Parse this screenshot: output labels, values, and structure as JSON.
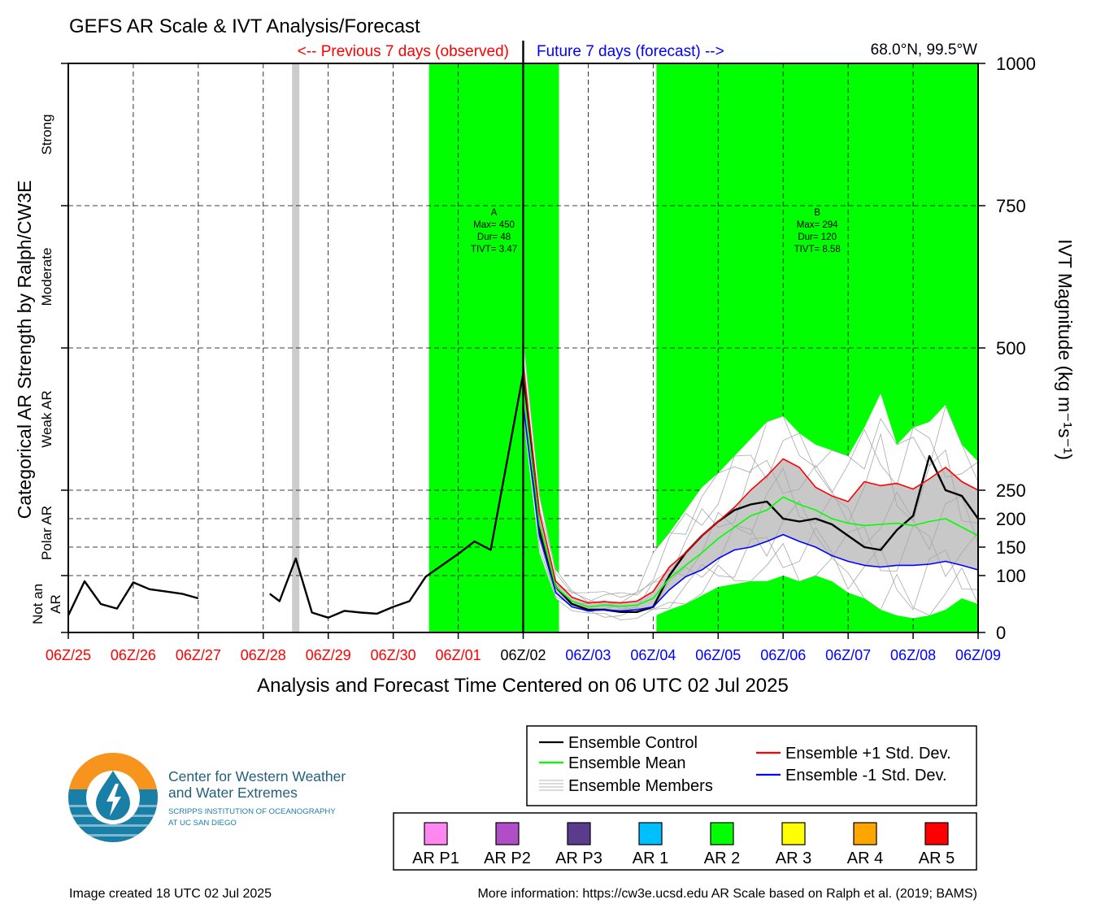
{
  "title": "GEFS AR Scale & IVT Analysis/Forecast",
  "header": {
    "previous_label": "<-- Previous 7 days (observed)",
    "future_label": "Future 7 days (forecast) -->",
    "location": "68.0°N, 99.5°W"
  },
  "chart_data": {
    "type": "line",
    "xlabel": "Analysis and Forecast Time Centered on 06 UTC 02 Jul 2025",
    "ylabel_right": "IVT Magnitude (kg m⁻¹s⁻¹)",
    "ylabel_left": "Categorical AR Strength by Ralph/CW3E",
    "x_ticks": [
      {
        "label": "06Z/25",
        "day": 0,
        "color": "#ff0000"
      },
      {
        "label": "06Z/26",
        "day": 1,
        "color": "#ff0000"
      },
      {
        "label": "06Z/27",
        "day": 2,
        "color": "#ff0000"
      },
      {
        "label": "06Z/28",
        "day": 3,
        "color": "#ff0000"
      },
      {
        "label": "06Z/29",
        "day": 4,
        "color": "#ff0000"
      },
      {
        "label": "06Z/30",
        "day": 5,
        "color": "#ff0000"
      },
      {
        "label": "06Z/01",
        "day": 6,
        "color": "#ff0000"
      },
      {
        "label": "06Z/02",
        "day": 7,
        "color": "#000000"
      },
      {
        "label": "06Z/03",
        "day": 8,
        "color": "#0000ff"
      },
      {
        "label": "06Z/04",
        "day": 9,
        "color": "#0000ff"
      },
      {
        "label": "06Z/05",
        "day": 10,
        "color": "#0000ff"
      },
      {
        "label": "06Z/06",
        "day": 11,
        "color": "#0000ff"
      },
      {
        "label": "06Z/07",
        "day": 12,
        "color": "#0000ff"
      },
      {
        "label": "06Z/08",
        "day": 13,
        "color": "#0000ff"
      },
      {
        "label": "06Z/09",
        "day": 14,
        "color": "#0000ff"
      }
    ],
    "xlim": [
      0,
      14
    ],
    "y_ticks": [
      0,
      100,
      150,
      200,
      250,
      500,
      750,
      1000
    ],
    "ylim": [
      0,
      1000
    ],
    "category_bands": [
      {
        "label": "Not an AR",
        "lines": [
          "Not an",
          "AR"
        ],
        "from": 0,
        "to": 100
      },
      {
        "label": "Polar AR",
        "from": 100,
        "to": 250
      },
      {
        "label": "Weak AR",
        "from": 250,
        "to": 500
      },
      {
        "label": "Moderate",
        "from": 500,
        "to": 750
      },
      {
        "label": "Strong",
        "from": 750,
        "to": 1000
      }
    ],
    "ar_periods": [
      {
        "id": "A",
        "max": "Max= 450",
        "dur": "Dur= 48",
        "tivt": "TIVT= 3.47",
        "start_day": 5.55,
        "end_day": 7.55,
        "category": "AR 2",
        "color": "#00ff00"
      },
      {
        "id": "B",
        "max": "Max= 294",
        "dur": "Dur= 120",
        "tivt": "TIVT= 8.58",
        "start_day": 9.05,
        "end_day": 14.0,
        "category": "AR 2",
        "color": "#00ff00"
      }
    ],
    "missing_data_bar": {
      "day": 3.5,
      "color": "#cccccc"
    },
    "current_time_day": 7,
    "series": [
      {
        "name": "Ensemble Control",
        "color": "#000000",
        "segments": [
          [
            [
              0,
              30
            ],
            [
              0.25,
              90
            ],
            [
              0.5,
              50
            ],
            [
              0.75,
              42
            ],
            [
              1,
              88
            ],
            [
              1.25,
              76
            ],
            [
              1.5,
              72
            ],
            [
              1.75,
              68
            ],
            [
              2,
              60
            ]
          ],
          [
            [
              3.1,
              68
            ],
            [
              3.25,
              55
            ],
            [
              3.5,
              130
            ],
            [
              3.75,
              35
            ],
            [
              4,
              26
            ],
            [
              4.25,
              38
            ],
            [
              4.5,
              35
            ],
            [
              4.75,
              33
            ],
            [
              5,
              45
            ],
            [
              5.25,
              55
            ],
            [
              5.5,
              98
            ],
            [
              5.75,
              118
            ],
            [
              6,
              138
            ],
            [
              6.25,
              160
            ],
            [
              6.5,
              145
            ],
            [
              7,
              455
            ],
            [
              7.25,
              180
            ],
            [
              7.5,
              80
            ],
            [
              7.75,
              50
            ],
            [
              8,
              40
            ],
            [
              8.25,
              40
            ],
            [
              8.5,
              36
            ],
            [
              8.75,
              36
            ],
            [
              9,
              45
            ],
            [
              9.25,
              100
            ],
            [
              9.5,
              140
            ],
            [
              9.75,
              170
            ],
            [
              10,
              195
            ],
            [
              10.25,
              215
            ],
            [
              10.5,
              225
            ],
            [
              10.75,
              230
            ],
            [
              11,
              200
            ],
            [
              11.25,
              195
            ],
            [
              11.5,
              200
            ],
            [
              11.75,
              190
            ],
            [
              12,
              170
            ],
            [
              12.25,
              150
            ],
            [
              12.5,
              145
            ],
            [
              12.75,
              180
            ],
            [
              13,
              205
            ],
            [
              13.25,
              310
            ],
            [
              13.5,
              250
            ],
            [
              13.75,
              240
            ],
            [
              14,
              200
            ]
          ]
        ]
      },
      {
        "name": "Ensemble Mean",
        "color": "#00ff00",
        "points": [
          [
            7,
            430
          ],
          [
            7.25,
            190
          ],
          [
            7.5,
            80
          ],
          [
            7.75,
            55
          ],
          [
            8,
            45
          ],
          [
            8.25,
            48
          ],
          [
            8.5,
            46
          ],
          [
            8.75,
            48
          ],
          [
            9,
            60
          ],
          [
            9.25,
            95
          ],
          [
            9.5,
            118
          ],
          [
            9.75,
            140
          ],
          [
            10,
            165
          ],
          [
            10.25,
            185
          ],
          [
            10.5,
            205
          ],
          [
            10.75,
            215
          ],
          [
            11,
            238
          ],
          [
            11.25,
            225
          ],
          [
            11.5,
            215
          ],
          [
            11.75,
            200
          ],
          [
            12,
            192
          ],
          [
            12.25,
            188
          ],
          [
            12.5,
            190
          ],
          [
            12.75,
            192
          ],
          [
            13,
            188
          ],
          [
            13.25,
            195
          ],
          [
            13.5,
            200
          ],
          [
            13.75,
            185
          ],
          [
            14,
            170
          ]
        ]
      },
      {
        "name": "Ensemble +1 Std. Dev.",
        "color": "#ff0000",
        "points": [
          [
            7,
            470
          ],
          [
            7.25,
            210
          ],
          [
            7.5,
            90
          ],
          [
            7.75,
            62
          ],
          [
            8,
            52
          ],
          [
            8.25,
            54
          ],
          [
            8.5,
            52
          ],
          [
            8.75,
            55
          ],
          [
            9,
            72
          ],
          [
            9.25,
            115
          ],
          [
            9.5,
            140
          ],
          [
            9.75,
            170
          ],
          [
            10,
            195
          ],
          [
            10.25,
            220
          ],
          [
            10.5,
            250
          ],
          [
            10.75,
            275
          ],
          [
            11,
            305
          ],
          [
            11.25,
            290
          ],
          [
            11.5,
            255
          ],
          [
            11.75,
            240
          ],
          [
            12,
            230
          ],
          [
            12.25,
            265
          ],
          [
            12.5,
            258
          ],
          [
            12.75,
            262
          ],
          [
            13,
            252
          ],
          [
            13.25,
            270
          ],
          [
            13.5,
            290
          ],
          [
            13.75,
            265
          ],
          [
            14,
            250
          ]
        ]
      },
      {
        "name": "Ensemble -1 Std. Dev.",
        "color": "#0000ff",
        "points": [
          [
            7,
            400
          ],
          [
            7.25,
            170
          ],
          [
            7.5,
            70
          ],
          [
            7.75,
            45
          ],
          [
            8,
            38
          ],
          [
            8.25,
            40
          ],
          [
            8.5,
            38
          ],
          [
            8.75,
            40
          ],
          [
            9,
            45
          ],
          [
            9.25,
            75
          ],
          [
            9.5,
            98
          ],
          [
            9.75,
            110
          ],
          [
            10,
            130
          ],
          [
            10.25,
            145
          ],
          [
            10.5,
            150
          ],
          [
            10.75,
            160
          ],
          [
            11,
            172
          ],
          [
            11.25,
            160
          ],
          [
            11.5,
            150
          ],
          [
            11.75,
            135
          ],
          [
            12,
            125
          ],
          [
            12.25,
            118
          ],
          [
            12.5,
            115
          ],
          [
            12.75,
            118
          ],
          [
            13,
            118
          ],
          [
            13.25,
            120
          ],
          [
            13.5,
            125
          ],
          [
            13.75,
            118
          ],
          [
            14,
            110
          ]
        ]
      },
      {
        "name": "Ensemble Members",
        "color": "#c8c8c8",
        "envelope": {
          "upper": [
            [
              7,
              520
            ],
            [
              7.25,
              240
            ],
            [
              7.5,
              110
            ],
            [
              7.75,
              80
            ],
            [
              8,
              70
            ],
            [
              8.25,
              72
            ],
            [
              8.5,
              70
            ],
            [
              8.75,
              80
            ],
            [
              9,
              140
            ],
            [
              9.25,
              175
            ],
            [
              9.5,
              215
            ],
            [
              9.75,
              255
            ],
            [
              10,
              280
            ],
            [
              10.25,
              310
            ],
            [
              10.5,
              340
            ],
            [
              10.75,
              370
            ],
            [
              11,
              380
            ],
            [
              11.25,
              350
            ],
            [
              11.5,
              330
            ],
            [
              11.75,
              320
            ],
            [
              12,
              310
            ],
            [
              12.25,
              360
            ],
            [
              12.5,
              420
            ],
            [
              12.75,
              330
            ],
            [
              13,
              360
            ],
            [
              13.25,
              370
            ],
            [
              13.5,
              400
            ],
            [
              13.75,
              330
            ],
            [
              14,
              300
            ]
          ],
          "lower": [
            [
              14,
              50
            ],
            [
              13.75,
              60
            ],
            [
              13.5,
              40
            ],
            [
              13.25,
              30
            ],
            [
              13,
              25
            ],
            [
              12.75,
              30
            ],
            [
              12.5,
              40
            ],
            [
              12.25,
              60
            ],
            [
              12,
              70
            ],
            [
              11.75,
              90
            ],
            [
              11.5,
              100
            ],
            [
              11.25,
              90
            ],
            [
              11,
              100
            ],
            [
              10.75,
              90
            ],
            [
              10.5,
              90
            ],
            [
              10.25,
              85
            ],
            [
              10,
              80
            ],
            [
              9.75,
              65
            ],
            [
              9.5,
              50
            ],
            [
              9.25,
              40
            ],
            [
              9,
              28
            ],
            [
              8.75,
              25
            ],
            [
              8.5,
              22
            ],
            [
              8.25,
              25
            ],
            [
              8,
              30
            ],
            [
              7.75,
              38
            ],
            [
              7.5,
              60
            ],
            [
              7.25,
              140
            ],
            [
              7,
              380
            ]
          ]
        }
      }
    ]
  },
  "legend": {
    "items": [
      {
        "label": "Ensemble Control",
        "color": "#000000",
        "style": "line"
      },
      {
        "label": "Ensemble Mean",
        "color": "#00ff00",
        "style": "line"
      },
      {
        "label": "Ensemble Members",
        "color": "#b4b4b4",
        "style": "multi"
      },
      {
        "label": "Ensemble +1 Std. Dev.",
        "color": "#ff0000",
        "style": "line"
      },
      {
        "label": "Ensemble -1 Std. Dev.",
        "color": "#0000ff",
        "style": "line"
      }
    ]
  },
  "ar_scale": [
    {
      "label": "AR P1",
      "color": "#ff88f0"
    },
    {
      "label": "AR P2",
      "color": "#b04ec8"
    },
    {
      "label": "AR P3",
      "color": "#5a3c8c"
    },
    {
      "label": "AR 1",
      "color": "#00bfff"
    },
    {
      "label": "AR 2",
      "color": "#00ff00"
    },
    {
      "label": "AR 3",
      "color": "#ffff00"
    },
    {
      "label": "AR 4",
      "color": "#ffa500"
    },
    {
      "label": "AR 5",
      "color": "#ff0000"
    }
  ],
  "logo": {
    "line1": "Center for Western Weather",
    "line2": "and Water Extremes",
    "line3": "SCRIPPS INSTITUTION OF OCEANOGRAPHY",
    "line4": "AT UC SAN DIEGO",
    "colors": {
      "orange": "#f7941d",
      "teal": "#1a7fa6",
      "text": "#23607a"
    }
  },
  "footer": {
    "created": "Image created 18 UTC 02 Jul 2025",
    "info": "More information: https://cw3e.ucsd.edu AR Scale based on Ralph et al. (2019; BAMS)"
  }
}
